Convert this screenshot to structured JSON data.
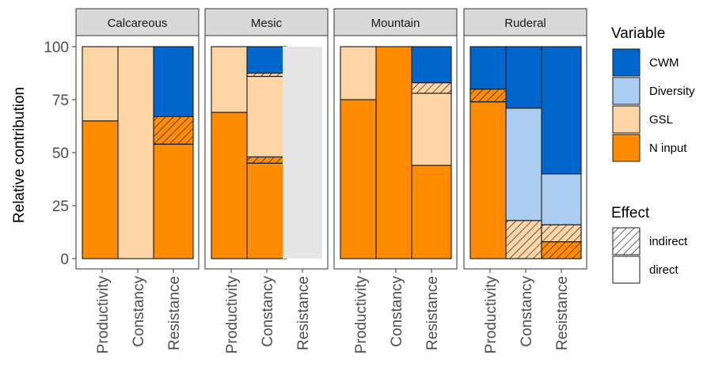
{
  "chart_data": {
    "type": "bar",
    "stacked": true,
    "ylabel": "Relative contribution",
    "ylim": [
      0,
      100
    ],
    "yticks": [
      0,
      25,
      50,
      75,
      100
    ],
    "categories": [
      "Productivity",
      "Constancy",
      "Resistance"
    ],
    "colors": {
      "CWM": "#0066cc",
      "Diversity": "#abcdef",
      "GSL": "#fdd5a6",
      "N input": "#fe8b00",
      "empty": "#e6e6e6"
    },
    "facets": [
      {
        "name": "Calcareous",
        "bars": [
          {
            "category": "Productivity",
            "segments": [
              {
                "variable": "N input",
                "effect": "direct",
                "value": 65
              },
              {
                "variable": "GSL",
                "effect": "direct",
                "value": 35
              }
            ]
          },
          {
            "category": "Constancy",
            "segments": [
              {
                "variable": "GSL",
                "effect": "direct",
                "value": 100
              }
            ]
          },
          {
            "category": "Resistance",
            "segments": [
              {
                "variable": "N input",
                "effect": "direct",
                "value": 54
              },
              {
                "variable": "N input",
                "effect": "indirect",
                "value": 13
              },
              {
                "variable": "CWM",
                "effect": "direct",
                "value": 33
              }
            ]
          }
        ]
      },
      {
        "name": "Mesic",
        "bars": [
          {
            "category": "Productivity",
            "segments": [
              {
                "variable": "N input",
                "effect": "direct",
                "value": 69
              },
              {
                "variable": "GSL",
                "effect": "direct",
                "value": 31
              }
            ]
          },
          {
            "category": "Constancy",
            "segments": [
              {
                "variable": "N input",
                "effect": "direct",
                "value": 45
              },
              {
                "variable": "N input",
                "effect": "indirect",
                "value": 3
              },
              {
                "variable": "GSL",
                "effect": "direct",
                "value": 38
              },
              {
                "variable": "GSL",
                "effect": "indirect",
                "value": 1.5
              },
              {
                "variable": "CWM",
                "effect": "direct",
                "value": 12.5
              }
            ]
          },
          {
            "category": "Resistance",
            "empty": true,
            "segments": []
          }
        ]
      },
      {
        "name": "Mountain",
        "bars": [
          {
            "category": "Productivity",
            "segments": [
              {
                "variable": "N input",
                "effect": "direct",
                "value": 75
              },
              {
                "variable": "GSL",
                "effect": "direct",
                "value": 25
              }
            ]
          },
          {
            "category": "Constancy",
            "segments": [
              {
                "variable": "N input",
                "effect": "direct",
                "value": 100
              }
            ]
          },
          {
            "category": "Resistance",
            "segments": [
              {
                "variable": "N input",
                "effect": "direct",
                "value": 44
              },
              {
                "variable": "GSL",
                "effect": "direct",
                "value": 34
              },
              {
                "variable": "GSL",
                "effect": "indirect",
                "value": 5
              },
              {
                "variable": "CWM",
                "effect": "direct",
                "value": 17
              }
            ]
          }
        ]
      },
      {
        "name": "Ruderal",
        "bars": [
          {
            "category": "Productivity",
            "segments": [
              {
                "variable": "N input",
                "effect": "direct",
                "value": 74
              },
              {
                "variable": "N input",
                "effect": "indirect",
                "value": 6
              },
              {
                "variable": "CWM",
                "effect": "direct",
                "value": 20
              }
            ]
          },
          {
            "category": "Constancy",
            "segments": [
              {
                "variable": "GSL",
                "effect": "indirect",
                "value": 18
              },
              {
                "variable": "Diversity",
                "effect": "direct",
                "value": 53
              },
              {
                "variable": "CWM",
                "effect": "direct",
                "value": 29
              }
            ]
          },
          {
            "category": "Resistance",
            "segments": [
              {
                "variable": "N input",
                "effect": "indirect",
                "value": 8
              },
              {
                "variable": "GSL",
                "effect": "indirect",
                "value": 8
              },
              {
                "variable": "Diversity",
                "effect": "direct",
                "value": 24
              },
              {
                "variable": "CWM",
                "effect": "direct",
                "value": 60
              }
            ]
          }
        ]
      }
    ],
    "legend": {
      "placement": "right",
      "variable": {
        "title": "Variable",
        "items": [
          "CWM",
          "Diversity",
          "GSL",
          "N input"
        ]
      },
      "effect": {
        "title": "Effect",
        "items": [
          "indirect",
          "direct"
        ]
      }
    }
  }
}
